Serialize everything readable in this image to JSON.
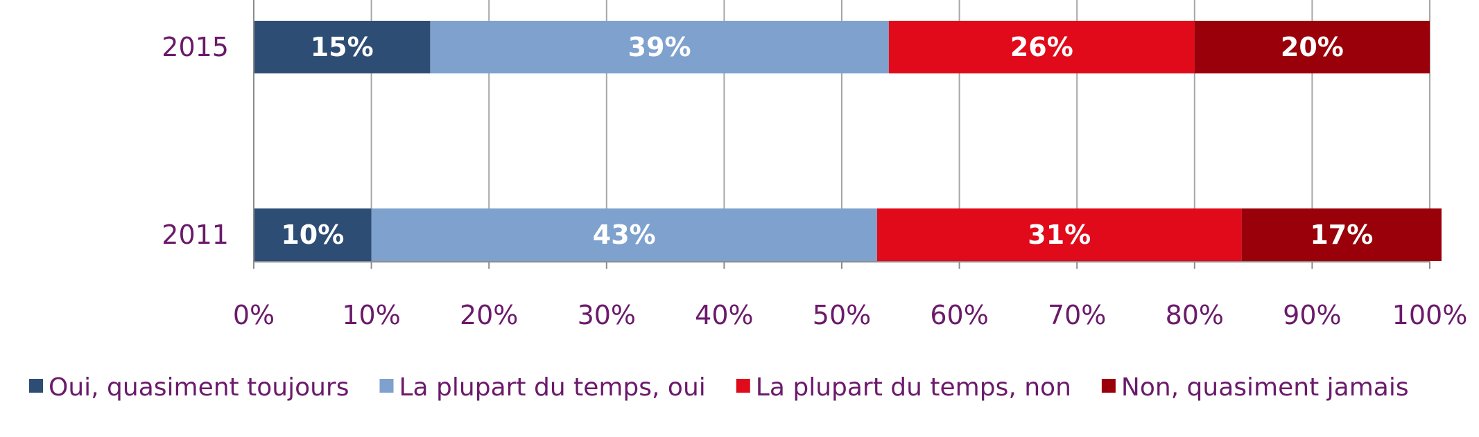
{
  "chart_data": {
    "type": "bar",
    "orientation": "horizontal",
    "stacked": "100%",
    "categories": [
      "2015",
      "2011"
    ],
    "series": [
      {
        "name": "Oui, quasiment toujours",
        "values": [
          15,
          10
        ],
        "labels": [
          "15%",
          "10%"
        ],
        "color": "#2e4d75"
      },
      {
        "name": "La plupart du temps, oui",
        "values": [
          39,
          43
        ],
        "labels": [
          "39%",
          "43%"
        ],
        "color": "#7ea1ce"
      },
      {
        "name": "La plupart du temps, non",
        "values": [
          26,
          31
        ],
        "labels": [
          "26%",
          "31%"
        ],
        "color": "#e00a1a"
      },
      {
        "name": "Non, quasiment jamais",
        "values": [
          20,
          17
        ],
        "labels": [
          "20%",
          "17%"
        ],
        "color": "#990009"
      }
    ],
    "xticks": [
      "0%",
      "10%",
      "20%",
      "30%",
      "40%",
      "50%",
      "60%",
      "70%",
      "80%",
      "90%",
      "100%"
    ],
    "xlim": [
      0,
      100
    ],
    "grid": true,
    "legend_position": "bottom",
    "title": "",
    "xlabel": "",
    "ylabel": ""
  }
}
